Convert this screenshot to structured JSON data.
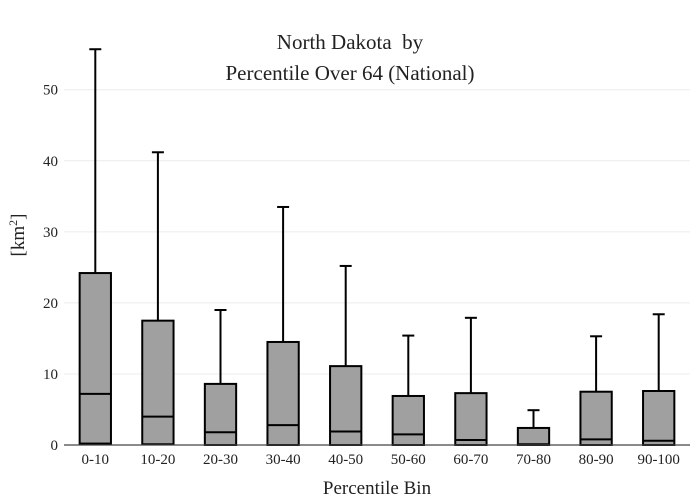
{
  "chart_data": {
    "type": "box",
    "title_line1": "North Dakota  by",
    "title_line2": "Percentile Over 64 (National)",
    "xlabel": "Percentile Bin",
    "ylabel_prefix": "[km",
    "ylabel_sup": "2",
    "ylabel_suffix": "]",
    "ylim": [
      0,
      57
    ],
    "y_ticks": [
      0,
      10,
      20,
      30,
      40,
      50
    ],
    "grid": true,
    "colors": {
      "box_fill": "#a0a0a0",
      "box_stroke": "#000000"
    },
    "categories": [
      "0-10",
      "10-20",
      "20-30",
      "30-40",
      "40-50",
      "50-60",
      "60-70",
      "70-80",
      "80-90",
      "90-100"
    ],
    "boxes": [
      {
        "category": "0-10",
        "min": 0.2,
        "q1": 0.2,
        "median": 7.2,
        "q3": 24.2,
        "max": 55.7
      },
      {
        "category": "10-20",
        "min": 0.1,
        "q1": 0.1,
        "median": 4.0,
        "q3": 17.5,
        "max": 41.2
      },
      {
        "category": "20-30",
        "min": 0.0,
        "q1": 0.0,
        "median": 1.8,
        "q3": 8.6,
        "max": 19.0
      },
      {
        "category": "30-40",
        "min": 0.0,
        "q1": 0.0,
        "median": 2.8,
        "q3": 14.5,
        "max": 33.5
      },
      {
        "category": "40-50",
        "min": 0.0,
        "q1": 0.0,
        "median": 1.9,
        "q3": 11.1,
        "max": 25.2
      },
      {
        "category": "50-60",
        "min": 0.0,
        "q1": 0.0,
        "median": 1.5,
        "q3": 6.9,
        "max": 15.4
      },
      {
        "category": "60-70",
        "min": 0.0,
        "q1": 0.0,
        "median": 0.7,
        "q3": 7.3,
        "max": 17.9
      },
      {
        "category": "70-80",
        "min": 0.0,
        "q1": 0.0,
        "median": 0.1,
        "q3": 2.4,
        "max": 4.9
      },
      {
        "category": "80-90",
        "min": 0.0,
        "q1": 0.0,
        "median": 0.8,
        "q3": 7.5,
        "max": 15.3
      },
      {
        "category": "90-100",
        "min": 0.0,
        "q1": 0.0,
        "median": 0.6,
        "q3": 7.6,
        "max": 18.4
      }
    ]
  }
}
